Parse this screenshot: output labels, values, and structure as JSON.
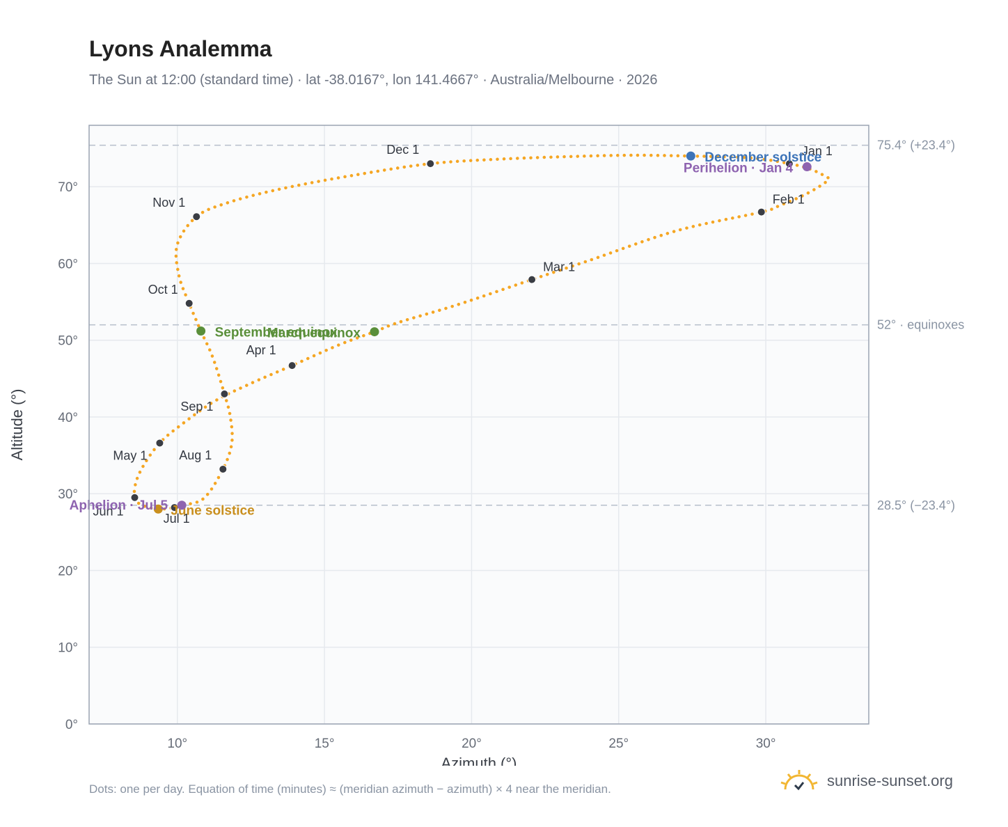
{
  "title": "Lyons Analemma",
  "subtitle": "The Sun at 12:00 (standard time) · lat -38.0167°, lon 141.4667° · Australia/Melbourne · 2026",
  "footnote": "Dots: one per day. Equation of time (minutes) ≈ (meridian azimuth − azimuth) × 4 near the meridian.",
  "brand": "sunrise-sunset.org",
  "colors": {
    "curve": "#f5a623",
    "month_marker": "#3a3d44",
    "equinox": "#5a8f3a",
    "solstice_june": "#c98f1e",
    "solstice_december": "#3d74b8",
    "apsis": "#8e63b0",
    "refline": "#b7bfcb",
    "grid": "#e6e9ee",
    "plot_bg": "#fafbfc",
    "frame": "#9aa3b2"
  },
  "chart_data": {
    "type": "scatter",
    "title": "Lyons Analemma",
    "xlabel": "Azimuth (°)",
    "ylabel": "Altitude (°)",
    "xlim": [
      7,
      33.5
    ],
    "ylim": [
      0,
      78
    ],
    "grid": true,
    "xticks": [
      {
        "value": 10,
        "label": "10°"
      },
      {
        "value": 15,
        "label": "15°"
      },
      {
        "value": 20,
        "label": "20°"
      },
      {
        "value": 25,
        "label": "25°"
      },
      {
        "value": 30,
        "label": "30°"
      }
    ],
    "yticks": [
      {
        "value": 0,
        "label": "0°"
      },
      {
        "value": 10,
        "label": "10°"
      },
      {
        "value": 20,
        "label": "20°"
      },
      {
        "value": 30,
        "label": "30°"
      },
      {
        "value": 40,
        "label": "40°"
      },
      {
        "value": 50,
        "label": "50°"
      },
      {
        "value": 60,
        "label": "60°"
      },
      {
        "value": 70,
        "label": "70°"
      }
    ],
    "reference_lines": [
      {
        "y": 75.4,
        "label": "75.4° (+23.4°)"
      },
      {
        "y": 52,
        "label": "52° · equinoxes"
      },
      {
        "y": 28.5,
        "label": "28.5° (−23.4°)"
      }
    ],
    "month_markers": [
      {
        "label": "Jan 1",
        "x": 30.8,
        "y": 73.0
      },
      {
        "label": "Feb 1",
        "x": 29.85,
        "y": 66.7
      },
      {
        "label": "Mar 1",
        "x": 22.05,
        "y": 57.9
      },
      {
        "label": "Apr 1",
        "x": 13.9,
        "y": 46.7
      },
      {
        "label": "May 1",
        "x": 9.4,
        "y": 36.6
      },
      {
        "label": "Jun 1",
        "x": 8.55,
        "y": 29.5
      },
      {
        "label": "Jul 1",
        "x": 9.9,
        "y": 28.2
      },
      {
        "label": "Aug 1",
        "x": 11.55,
        "y": 33.2
      },
      {
        "label": "Sep 1",
        "x": 11.6,
        "y": 43.0
      },
      {
        "label": "Oct 1",
        "x": 10.4,
        "y": 54.8
      },
      {
        "label": "Nov 1",
        "x": 10.65,
        "y": 66.1
      },
      {
        "label": "Dec 1",
        "x": 18.6,
        "y": 73.0
      }
    ],
    "events": [
      {
        "label": "March equinox",
        "x": 16.7,
        "y": 51.1,
        "kind": "equinox"
      },
      {
        "label": "September equinox",
        "x": 10.8,
        "y": 51.2,
        "kind": "equinox"
      },
      {
        "label": "June solstice",
        "x": 9.35,
        "y": 28.0,
        "kind": "solstice_june"
      },
      {
        "label": "December solstice",
        "x": 27.45,
        "y": 74.0,
        "kind": "solstice_december"
      },
      {
        "label": "Perihelion · Jan 4",
        "x": 31.4,
        "y": 72.6,
        "kind": "apsis"
      },
      {
        "label": "Aphelion · Jul 5",
        "x": 10.15,
        "y": 28.5,
        "kind": "apsis"
      }
    ],
    "series": [
      {
        "points": [
          [
            27.45,
            74.0
          ],
          [
            29.5,
            73.75
          ],
          [
            30.8,
            73.0
          ],
          [
            31.5,
            72.3
          ],
          [
            32.0,
            71.4
          ],
          [
            32.1,
            70.8
          ],
          [
            31.4,
            69.1
          ],
          [
            30.5,
            67.6
          ],
          [
            29.85,
            66.7
          ],
          [
            27.0,
            64.3
          ],
          [
            24.0,
            60.4
          ],
          [
            22.05,
            57.9
          ],
          [
            19.5,
            54.6
          ],
          [
            17.5,
            52.3
          ],
          [
            16.7,
            51.1
          ],
          [
            15.5,
            49.4
          ],
          [
            13.9,
            46.7
          ],
          [
            12.4,
            44.2
          ],
          [
            11.2,
            41.9
          ],
          [
            10.0,
            38.6
          ],
          [
            9.4,
            36.6
          ],
          [
            8.9,
            34.0
          ],
          [
            8.6,
            31.6
          ],
          [
            8.55,
            29.5
          ],
          [
            8.8,
            28.5
          ],
          [
            9.35,
            28.0
          ],
          [
            9.9,
            28.2
          ],
          [
            10.15,
            28.5
          ],
          [
            10.9,
            29.4
          ],
          [
            11.55,
            33.2
          ],
          [
            11.85,
            36.6
          ],
          [
            11.8,
            40.0
          ],
          [
            11.6,
            43.0
          ],
          [
            11.2,
            47.8
          ],
          [
            10.8,
            51.2
          ],
          [
            10.4,
            54.8
          ],
          [
            10.05,
            58.5
          ],
          [
            10.0,
            62.5
          ],
          [
            10.65,
            66.1
          ],
          [
            11.7,
            67.9
          ],
          [
            13.5,
            69.7
          ],
          [
            16.0,
            71.5
          ],
          [
            18.6,
            73.0
          ],
          [
            21.0,
            73.6
          ],
          [
            23.5,
            73.95
          ],
          [
            25.5,
            74.1
          ],
          [
            27.45,
            74.0
          ]
        ]
      }
    ]
  }
}
